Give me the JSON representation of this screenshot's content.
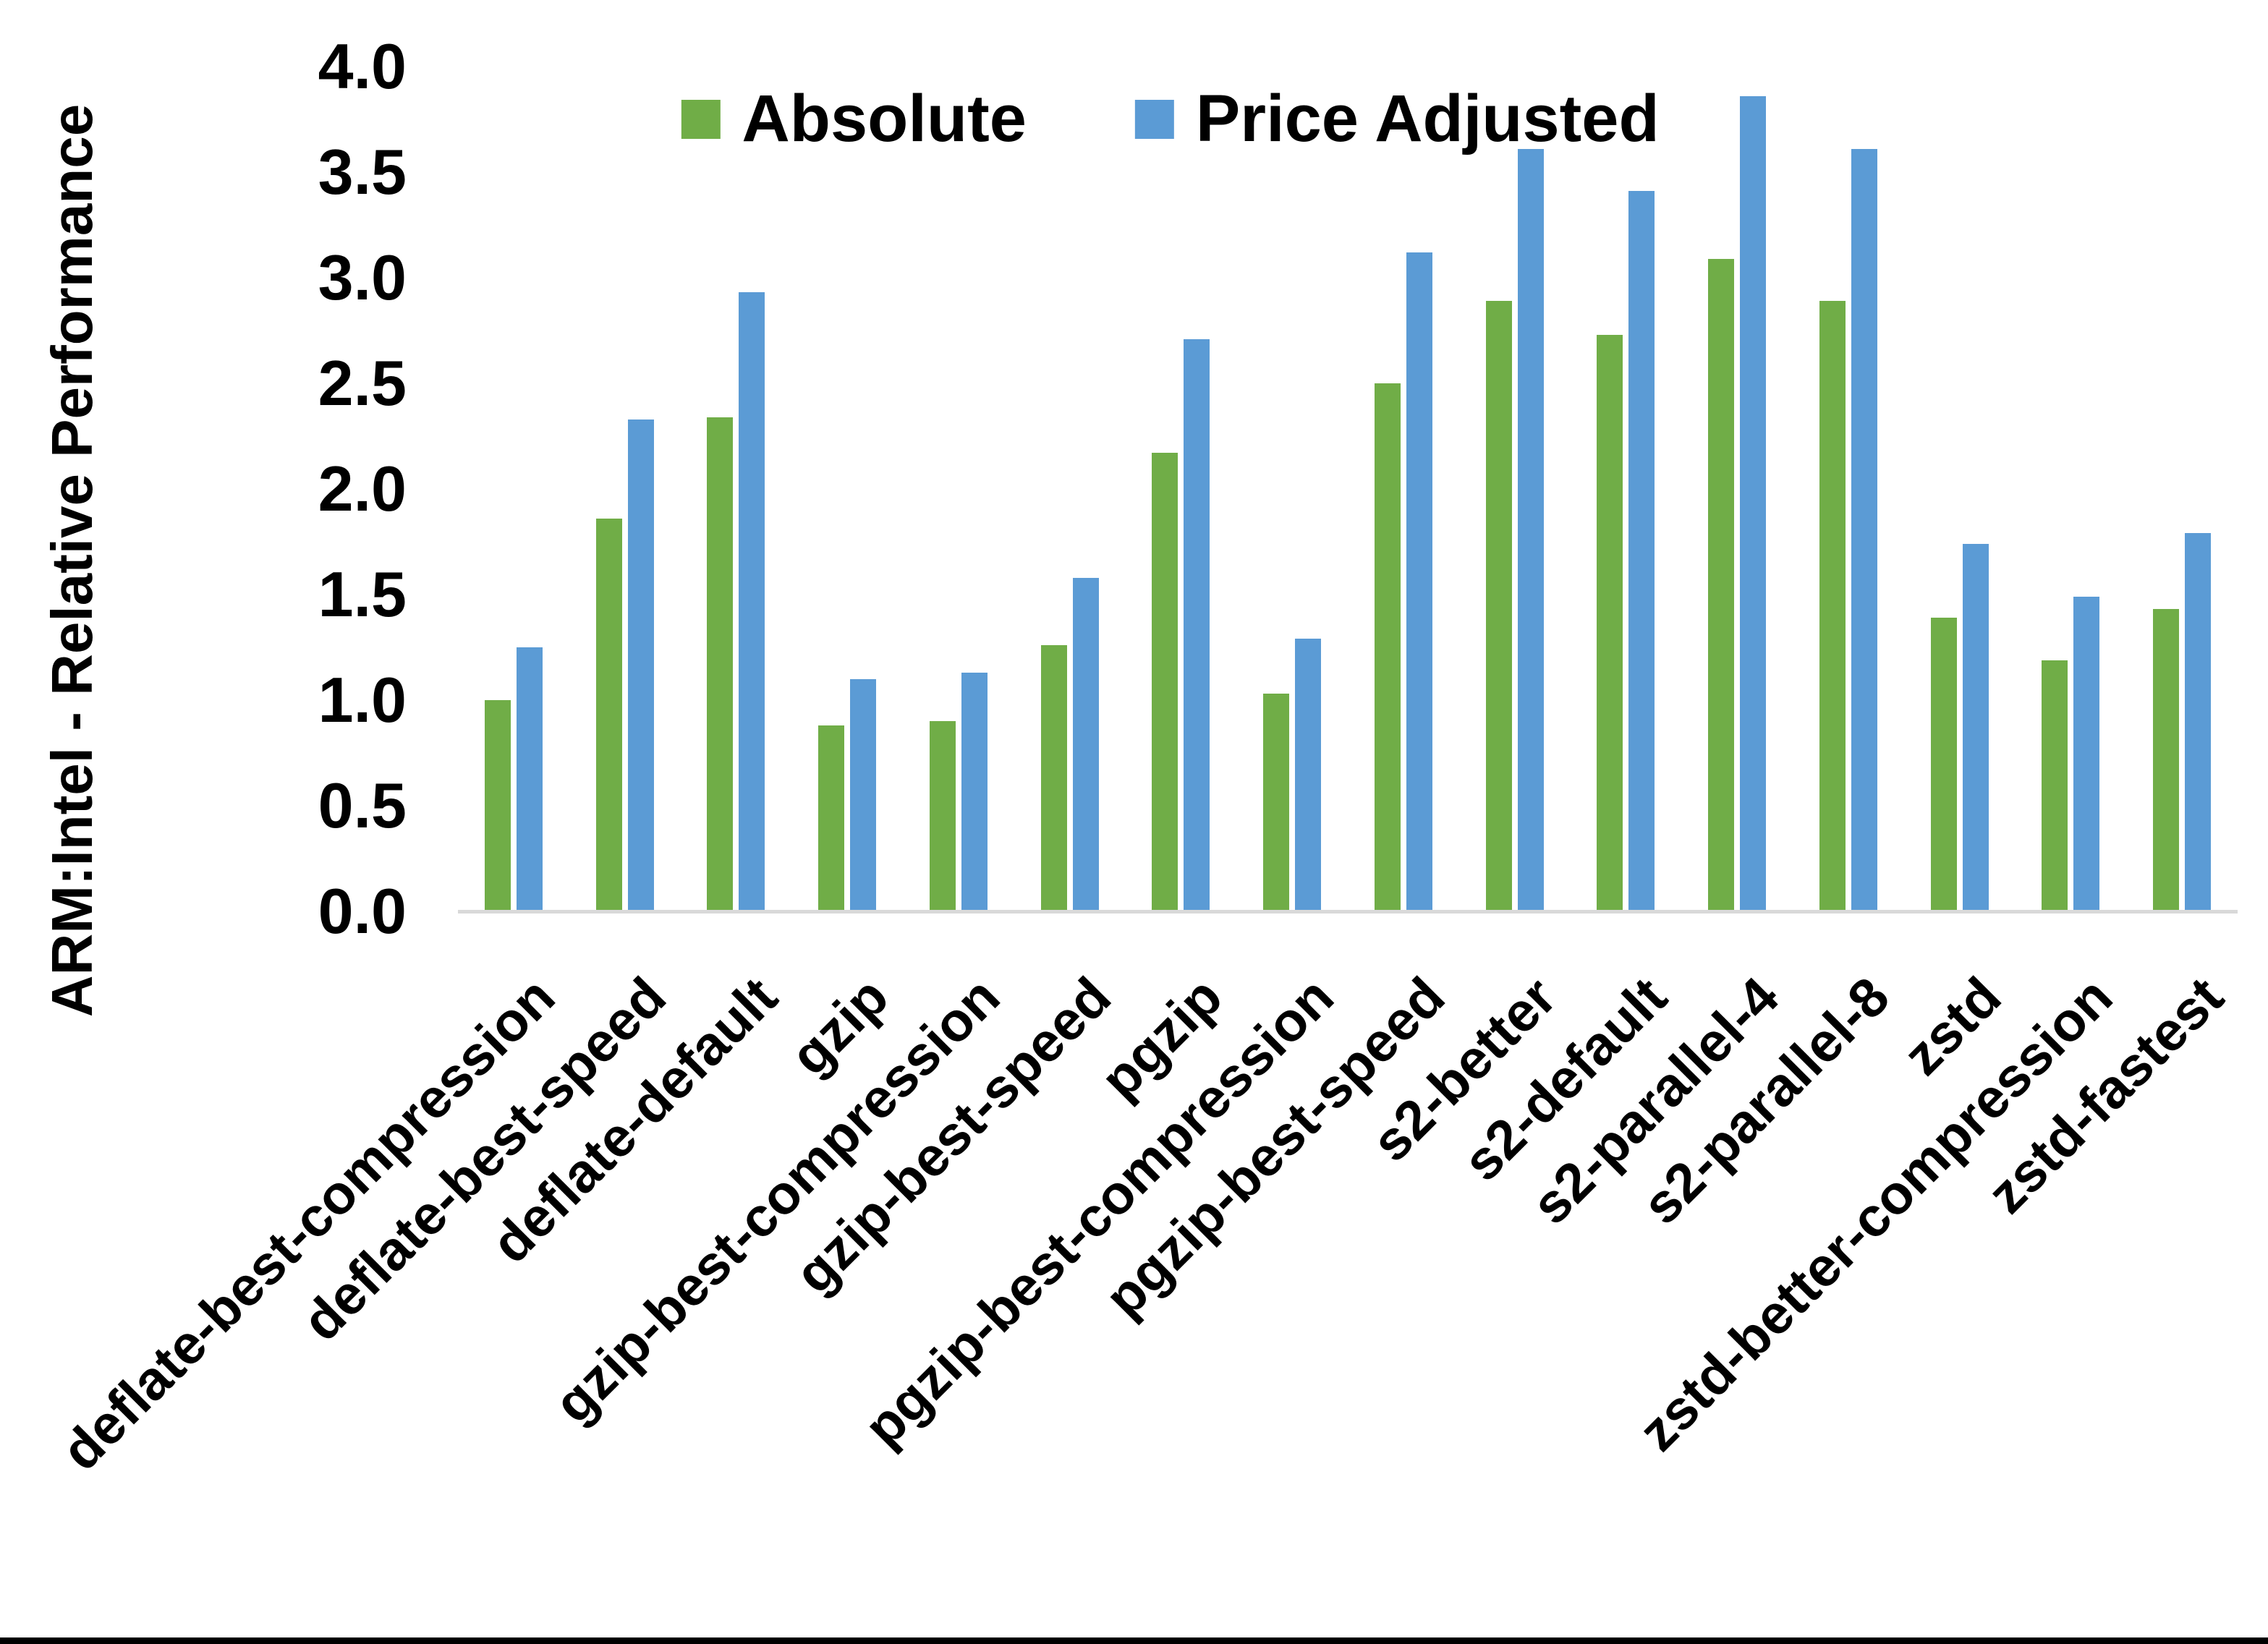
{
  "chart_data": {
    "type": "bar",
    "title": "",
    "xlabel": "",
    "ylabel": "ARM:Intel - Relative Performance",
    "ylim": [
      0.0,
      4.0
    ],
    "ytick_step": 0.5,
    "yticks": [
      "0.0",
      "0.5",
      "1.0",
      "1.5",
      "2.0",
      "2.5",
      "3.0",
      "3.5",
      "4.0"
    ],
    "grid": false,
    "legend_position": "top-center",
    "axis_line_color": "#d9d9d9",
    "categories": [
      "deflate-best-compression",
      "deflate-best-speed",
      "deflate-default",
      "gzip",
      "gzip-best-compression",
      "gzip-best-speed",
      "pgzip",
      "pgzip-best-compression",
      "pgzip-best-speed",
      "s2-better",
      "s2-default",
      "s2-parallel-4",
      "s2-parallel-8",
      "zstd",
      "zstd-better-compression",
      "zstd-fastest"
    ],
    "series": [
      {
        "name": "Absolute",
        "color": "#70AD47",
        "values": [
          1.0,
          1.86,
          2.34,
          0.88,
          0.9,
          1.26,
          2.17,
          1.03,
          2.5,
          2.89,
          2.73,
          3.09,
          2.89,
          1.39,
          1.19,
          1.43
        ]
      },
      {
        "name": "Price Adjusted",
        "color": "#5B9BD5",
        "values": [
          1.25,
          2.33,
          2.93,
          1.1,
          1.13,
          1.58,
          2.71,
          1.29,
          3.12,
          3.61,
          3.41,
          3.86,
          3.61,
          1.74,
          1.49,
          1.79
        ]
      }
    ]
  },
  "frame": {
    "bottom_border_color": "#000000"
  }
}
